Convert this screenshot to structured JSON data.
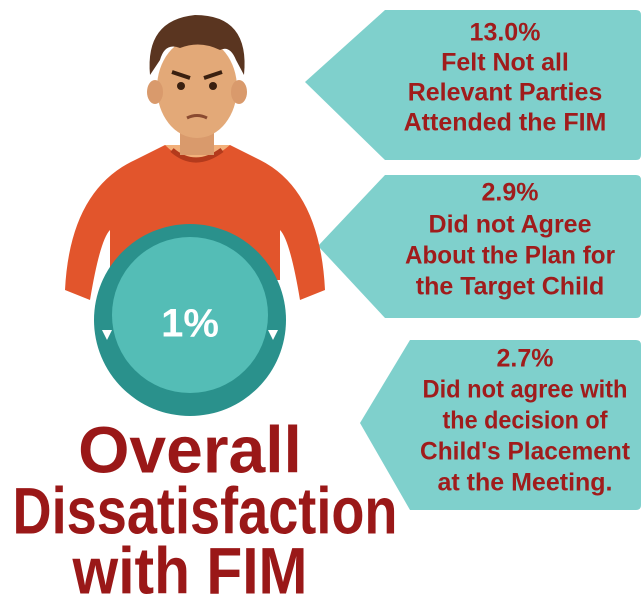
{
  "center": {
    "value": "1%"
  },
  "title": {
    "lines": [
      "Overall",
      "Dissatisfaction",
      "with FIM"
    ]
  },
  "callouts": [
    {
      "value": "13.0%",
      "lines": [
        "Felt Not all",
        "Relevant Parties",
        "Attended the FIM"
      ]
    },
    {
      "value": "2.9%",
      "lines": [
        "Did not Agree",
        "About the Plan for",
        "the Target Child"
      ]
    },
    {
      "value": "2.7%",
      "lines": [
        "Did not agree with",
        "the decision of",
        "Child's Placement",
        "at the Meeting."
      ]
    }
  ]
}
